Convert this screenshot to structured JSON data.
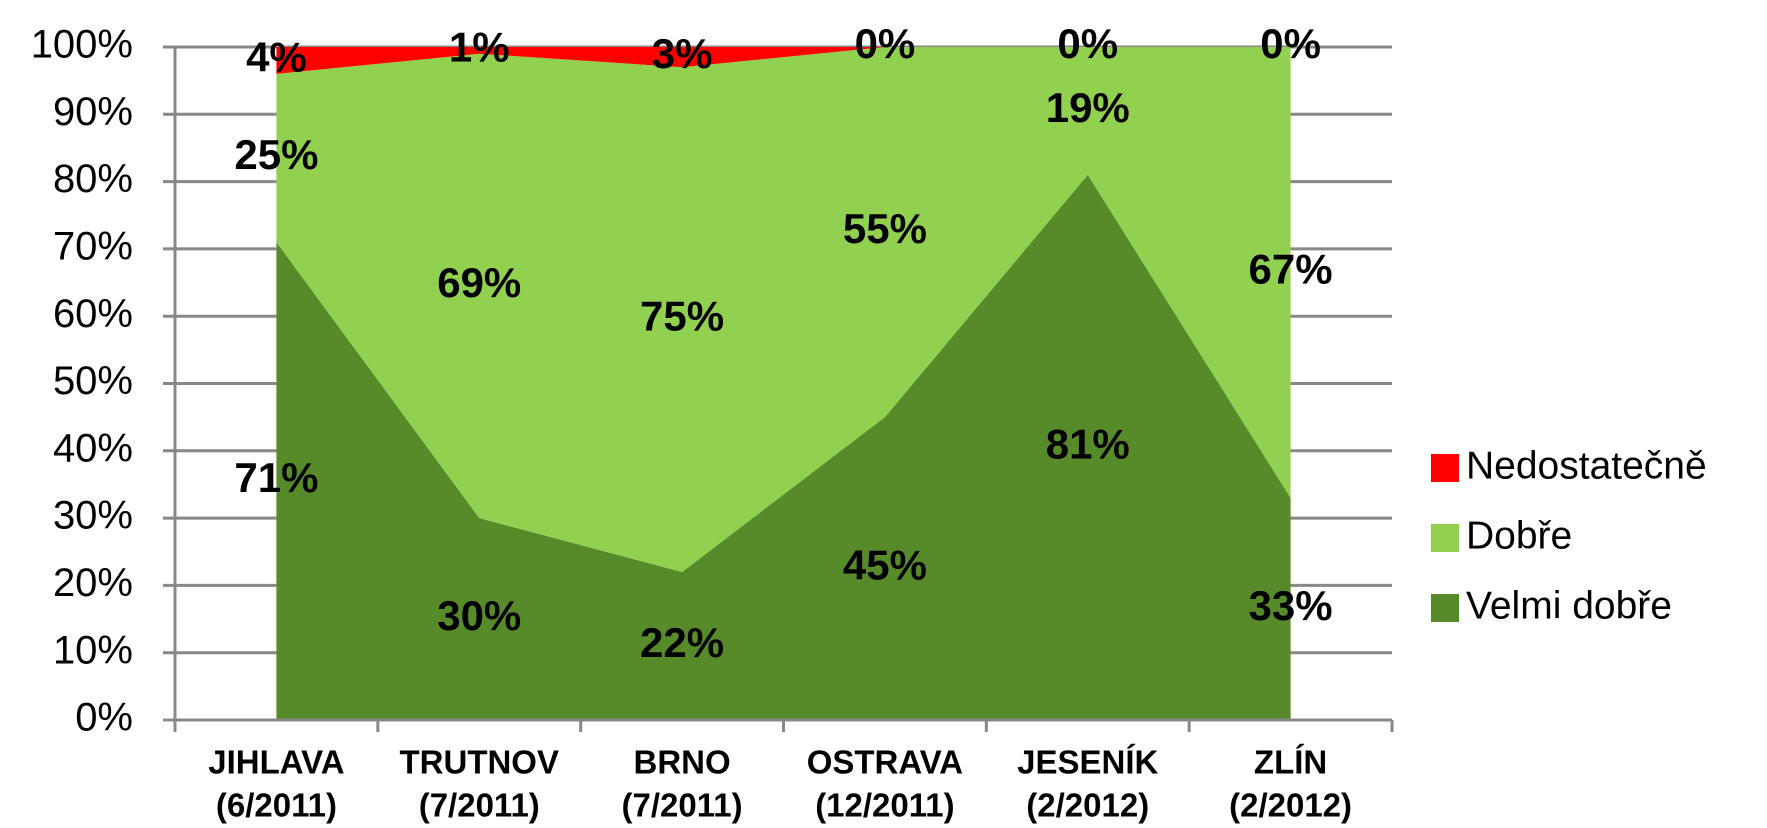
{
  "chart_data": {
    "type": "stacked_area",
    "categories": [
      [
        "JIHLAVA",
        "(6/2011)"
      ],
      [
        "TRUTNOV",
        "(7/2011)"
      ],
      [
        "BRNO",
        "(7/2011)"
      ],
      [
        "OSTRAVA",
        "(12/2011)"
      ],
      [
        "JESENÍK",
        "(2/2012)"
      ],
      [
        "ZLÍN",
        "(2/2012)"
      ]
    ],
    "series": [
      {
        "name": "Velmi dobře",
        "color": "#578a28",
        "values": [
          71,
          30,
          22,
          45,
          81,
          33
        ],
        "value_labels": [
          "71%",
          "30%",
          "22%",
          "45%",
          "81%",
          "33%"
        ]
      },
      {
        "name": "Dobře",
        "color": "#92d050",
        "values": [
          25,
          69,
          75,
          55,
          19,
          67
        ],
        "value_labels": [
          "25%",
          "69%",
          "75%",
          "55%",
          "19%",
          "67%"
        ]
      },
      {
        "name": "Nedostatečně",
        "color": "#ff0000",
        "values": [
          4,
          1,
          3,
          0,
          0,
          0
        ],
        "value_labels": [
          "4%",
          "1%",
          "3%",
          "0%",
          "0%",
          "0%"
        ]
      }
    ],
    "ylim": [
      0,
      100
    ],
    "yticks": [
      {
        "value": 0,
        "label": "0%"
      },
      {
        "value": 10,
        "label": "10%"
      },
      {
        "value": 20,
        "label": "20%"
      },
      {
        "value": 30,
        "label": "30%"
      },
      {
        "value": 40,
        "label": "40%"
      },
      {
        "value": 50,
        "label": "50%"
      },
      {
        "value": 60,
        "label": "60%"
      },
      {
        "value": 70,
        "label": "70%"
      },
      {
        "value": 80,
        "label": "80%"
      },
      {
        "value": 90,
        "label": "90%"
      },
      {
        "value": 100,
        "label": "100%"
      }
    ],
    "grid": true,
    "legend": "right"
  }
}
